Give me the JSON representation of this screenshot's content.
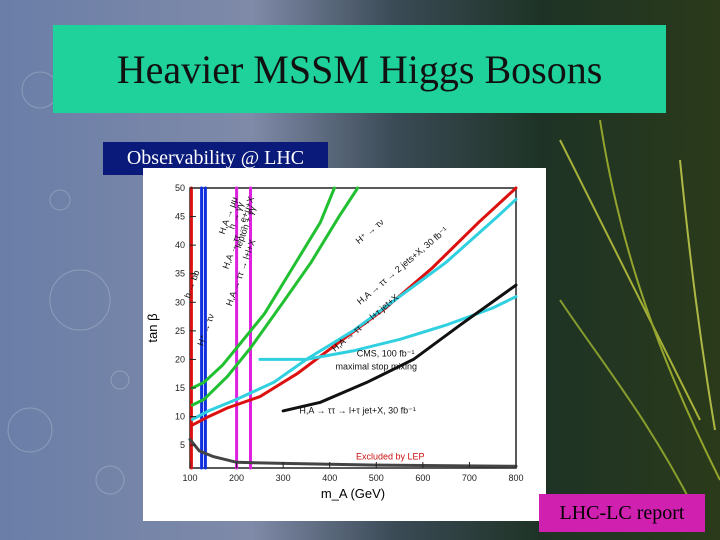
{
  "slide": {
    "title": "Heavier MSSM Higgs Bosons",
    "subtitle_label": "Observability @ LHC",
    "footer_label": "LHC-LC report"
  },
  "colors": {
    "title_bg": "#1fd19a",
    "label_bg": "#0a1a7a",
    "footer_bg": "#d020b0"
  },
  "chart_data": {
    "type": "line",
    "xlabel": "m_A (GeV)",
    "ylabel": "tan β",
    "xlim": [
      100,
      800
    ],
    "ylim": [
      1,
      50
    ],
    "x_ticks": [
      100,
      200,
      300,
      400,
      500,
      600,
      700,
      800
    ],
    "y_ticks": [
      5,
      10,
      15,
      20,
      25,
      30,
      35,
      40,
      45,
      50
    ],
    "annotations": [
      {
        "text": "CMS, 100 fb⁻¹",
        "x": 520,
        "y": 20.5
      },
      {
        "text": "maximal stop mixing",
        "x": 500,
        "y": 18.2
      },
      {
        "text": "H,A → ττ → l+τ jet+X, 30 fb⁻¹",
        "x": 460,
        "y": 10.5
      },
      {
        "text": "Excluded by LEP",
        "x": 530,
        "y": 2.5
      },
      {
        "text": "h → bb",
        "x": 110,
        "y": 33
      },
      {
        "text": "h → γγ",
        "x": 205,
        "y": 45
      },
      {
        "text": "lepton + γγ",
        "x": 225,
        "y": 43
      },
      {
        "text": "H,A → μμ",
        "x": 188,
        "y": 45
      },
      {
        "text": "H,A → ττ → e+μ+X",
        "x": 210,
        "y": 42
      },
      {
        "text": "H,A → ττ → l+l+X",
        "x": 215,
        "y": 35
      },
      {
        "text": "H,A → ττ → l+τ jet+X",
        "x": 480,
        "y": 26
      },
      {
        "text": "H⁺ → τν",
        "x": 140,
        "y": 25
      },
      {
        "text": "H,A → ττ → 2 jets+X, 30 fb⁻¹",
        "x": 560,
        "y": 36
      },
      {
        "text": "H⁺ → τν",
        "x": 490,
        "y": 42
      }
    ],
    "series": [
      {
        "values": [
          [
            103,
            50
          ],
          [
            103,
            1
          ]
        ],
        "color": "#dd1010"
      },
      {
        "values": [
          [
            125,
            50
          ],
          [
            125,
            1
          ]
        ],
        "color": "#1030e0"
      },
      {
        "values": [
          [
            133,
            50
          ],
          [
            133,
            1
          ]
        ],
        "color": "#1030e0"
      },
      {
        "values": [
          [
            200,
            50
          ],
          [
            200,
            1
          ]
        ],
        "color": "#e020e0"
      },
      {
        "values": [
          [
            230,
            50
          ],
          [
            230,
            1
          ]
        ],
        "color": "#e020e0"
      },
      {
        "values": [
          [
            105,
            12
          ],
          [
            130,
            13
          ],
          [
            180,
            17
          ],
          [
            230,
            22
          ],
          [
            300,
            30
          ],
          [
            360,
            37
          ],
          [
            420,
            45
          ],
          [
            460,
            50
          ]
        ],
        "color": "#20c030"
      },
      {
        "values": [
          [
            105,
            15
          ],
          [
            130,
            16
          ],
          [
            170,
            19
          ],
          [
            200,
            22
          ],
          [
            260,
            28
          ],
          [
            320,
            36
          ],
          [
            380,
            44
          ],
          [
            410,
            50
          ]
        ],
        "color": "#20c030"
      },
      {
        "values": [
          [
            105,
            8.5
          ],
          [
            140,
            10
          ],
          [
            180,
            11.5
          ],
          [
            250,
            13.5
          ],
          [
            330,
            17.5
          ],
          [
            420,
            23
          ],
          [
            520,
            29
          ],
          [
            620,
            36
          ],
          [
            720,
            44
          ],
          [
            800,
            50
          ]
        ],
        "color": "#dd1010"
      },
      {
        "values": [
          [
            105,
            9.5
          ],
          [
            140,
            11
          ],
          [
            200,
            13
          ],
          [
            280,
            16
          ],
          [
            350,
            20
          ],
          [
            450,
            25
          ],
          [
            550,
            31
          ],
          [
            650,
            37
          ],
          [
            760,
            45
          ],
          [
            800,
            48
          ]
        ],
        "color": "#30d0e0"
      },
      {
        "values": [
          [
            250,
            20
          ],
          [
            350,
            20
          ],
          [
            450,
            21.5
          ],
          [
            550,
            23.5
          ],
          [
            650,
            26
          ],
          [
            750,
            29
          ],
          [
            800,
            31
          ]
        ],
        "color": "#30d0e0"
      },
      {
        "values": [
          [
            300,
            11
          ],
          [
            380,
            12.5
          ],
          [
            480,
            16
          ],
          [
            580,
            20
          ],
          [
            680,
            26
          ],
          [
            800,
            33
          ]
        ],
        "color": "#111111"
      },
      {
        "values": [
          [
            100,
            6
          ],
          [
            120,
            4
          ],
          [
            150,
            3
          ],
          [
            200,
            2
          ],
          [
            300,
            1.8
          ],
          [
            500,
            1.5
          ],
          [
            800,
            1.3
          ]
        ],
        "color": "#444444"
      }
    ]
  }
}
